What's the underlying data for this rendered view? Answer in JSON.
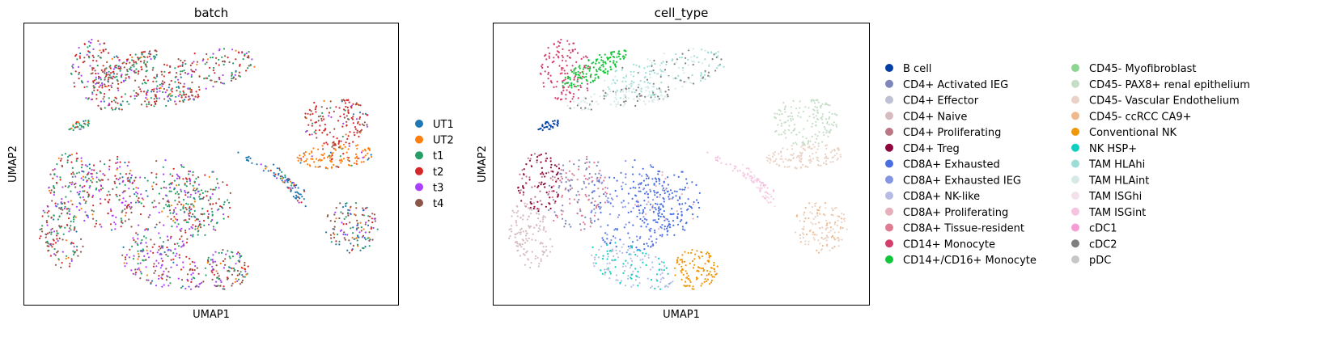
{
  "chart_data": [
    {
      "type": "scatter",
      "title": "batch",
      "xlabel": "UMAP1",
      "ylabel": "UMAP2",
      "legend_placement": "right",
      "series": [
        {
          "name": "UT1",
          "color": "#1f77b4"
        },
        {
          "name": "UT2",
          "color": "#ff7f0e"
        },
        {
          "name": "t1",
          "color": "#279e68"
        },
        {
          "name": "t2",
          "color": "#d62728"
        },
        {
          "name": "t3",
          "color": "#aa40fc"
        },
        {
          "name": "t4",
          "color": "#8c564b"
        }
      ]
    },
    {
      "type": "scatter",
      "title": "cell_type",
      "xlabel": "UMAP1",
      "ylabel": "UMAP2",
      "legend_placement": "right",
      "series": [
        {
          "name": "B cell",
          "color": "#023fa5"
        },
        {
          "name": "CD4+ Activated IEG",
          "color": "#7d87b9"
        },
        {
          "name": "CD4+ Effector",
          "color": "#bec1d4"
        },
        {
          "name": "CD4+ Naive",
          "color": "#d6bcc0"
        },
        {
          "name": "CD4+ Proliferating",
          "color": "#bb7784"
        },
        {
          "name": "CD4+ Treg",
          "color": "#8e063b"
        },
        {
          "name": "CD8A+ Exhausted",
          "color": "#4a6fe3"
        },
        {
          "name": "CD8A+ Exhausted IEG",
          "color": "#8595e1"
        },
        {
          "name": "CD8A+ NK-like",
          "color": "#b5bbe3"
        },
        {
          "name": "CD8A+ Proliferating",
          "color": "#e6afb9"
        },
        {
          "name": "CD8A+ Tissue-resident",
          "color": "#e07b91"
        },
        {
          "name": "CD14+ Monocyte",
          "color": "#d33f6a"
        },
        {
          "name": "CD14+/CD16+ Monocyte",
          "color": "#11c638"
        },
        {
          "name": "CD45- Myofibroblast",
          "color": "#8dd593"
        },
        {
          "name": "CD45- PAX8+ renal epithelium",
          "color": "#c6dec7"
        },
        {
          "name": "CD45- Vascular Endothelium",
          "color": "#ead3c6"
        },
        {
          "name": "CD45- ccRCC CA9+",
          "color": "#f0b98d"
        },
        {
          "name": "Conventional NK",
          "color": "#ef9708"
        },
        {
          "name": "NK HSP+",
          "color": "#0fcfc0"
        },
        {
          "name": "TAM HLAhi",
          "color": "#9cded6"
        },
        {
          "name": "TAM HLAint",
          "color": "#d5eae7"
        },
        {
          "name": "TAM ISGhi",
          "color": "#f3e1eb"
        },
        {
          "name": "TAM ISGint",
          "color": "#f6c4e1"
        },
        {
          "name": "cDC1",
          "color": "#f79cd4"
        },
        {
          "name": "cDC2",
          "color": "#7f7f7f"
        },
        {
          "name": "pDC",
          "color": "#c7c7c7"
        }
      ]
    }
  ]
}
